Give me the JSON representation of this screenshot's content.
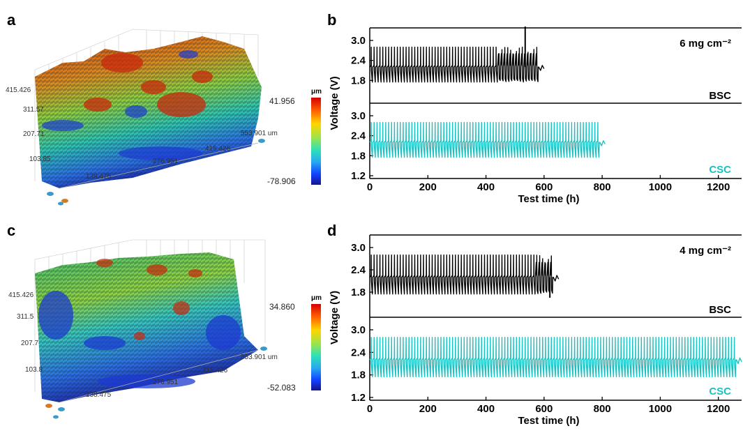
{
  "panels": {
    "a": {
      "letter": "a",
      "cbar_unit": "μm",
      "cbar_max": "41.956",
      "cbar_min": "-78.906",
      "y_ticks": [
        "415.426",
        "311.57",
        "207.71",
        "103.85"
      ],
      "x_ticks": [
        "138.475",
        "276.951",
        "415.426",
        "553.901 um"
      ]
    },
    "b": {
      "letter": "b",
      "loading": "6 mg cm⁻²",
      "top_label": "BSC",
      "bottom_label": "CSC"
    },
    "c": {
      "letter": "c",
      "cbar_unit": "μm",
      "cbar_max": "34.860",
      "cbar_min": "-52.083",
      "y_ticks": [
        "415.426",
        "311.5",
        "207.7",
        "103.8"
      ],
      "x_ticks": [
        "138.475",
        "276.951",
        "415.426",
        "553.901 um"
      ]
    },
    "d": {
      "letter": "d",
      "loading": "4 mg cm⁻²",
      "top_label": "BSC",
      "bottom_label": "CSC"
    }
  },
  "colors": {
    "bsc": "#000000",
    "csc": "#19c2c2"
  },
  "chart_data": [
    {
      "type": "line",
      "panel": "b",
      "xlabel": "Test time (h)",
      "ylabel": "Voltage (V)",
      "xlim": [
        0,
        1280
      ],
      "xticks": [
        0,
        200,
        400,
        600,
        800,
        1000,
        1200
      ],
      "ylim": [
        1.2,
        3.0
      ],
      "yticks": [
        1.2,
        1.8,
        2.4,
        3.0
      ],
      "series": [
        {
          "name": "BSC",
          "cycle_period_h": 10,
          "v_high": 2.8,
          "v_low": 1.75,
          "plateau": 2.2,
          "end_time_h": 600,
          "erratic_start_h": 440,
          "spike_h": 535,
          "spike_v": 3.25
        },
        {
          "name": "CSC",
          "cycle_period_h": 10,
          "v_high": 2.8,
          "v_low": 1.75,
          "plateau": 2.2,
          "end_time_h": 810
        }
      ]
    },
    {
      "type": "line",
      "panel": "d",
      "xlabel": "Test time (h)",
      "ylabel": "Voltage (V)",
      "xlim": [
        0,
        1280
      ],
      "xticks": [
        0,
        200,
        400,
        600,
        800,
        1000,
        1200
      ],
      "ylim": [
        1.2,
        3.0
      ],
      "yticks": [
        1.2,
        1.8,
        2.4,
        3.0
      ],
      "series": [
        {
          "name": "BSC",
          "cycle_period_h": 10,
          "v_high": 2.8,
          "v_low": 1.75,
          "plateau": 2.2,
          "end_time_h": 650,
          "erratic_start_h": 570,
          "drop_h": 620,
          "drop_v": 1.65
        },
        {
          "name": "CSC",
          "cycle_period_h": 10,
          "v_high": 2.8,
          "v_low": 1.75,
          "plateau": 2.2,
          "end_time_h": 1280
        }
      ]
    }
  ]
}
